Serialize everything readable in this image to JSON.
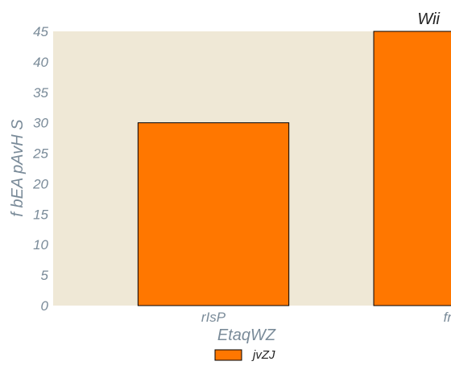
{
  "chart_data": {
    "type": "bar",
    "title": "Wii",
    "xlabel": "EtaqWZ",
    "ylabel": "f bEA pAvH S",
    "categories": [
      "rIsP",
      "fn"
    ],
    "series": [
      {
        "name": "jvZJ",
        "values": [
          30,
          45
        ],
        "color": "#ff7700"
      }
    ],
    "ylim": [
      0,
      45
    ],
    "yticks": [
      0,
      5,
      10,
      15,
      20,
      25,
      30,
      35,
      40,
      45
    ],
    "grid": false,
    "plot_background": "#efe8d6",
    "bar_edge_color": "#000000",
    "legend_position": "bottom-center"
  }
}
